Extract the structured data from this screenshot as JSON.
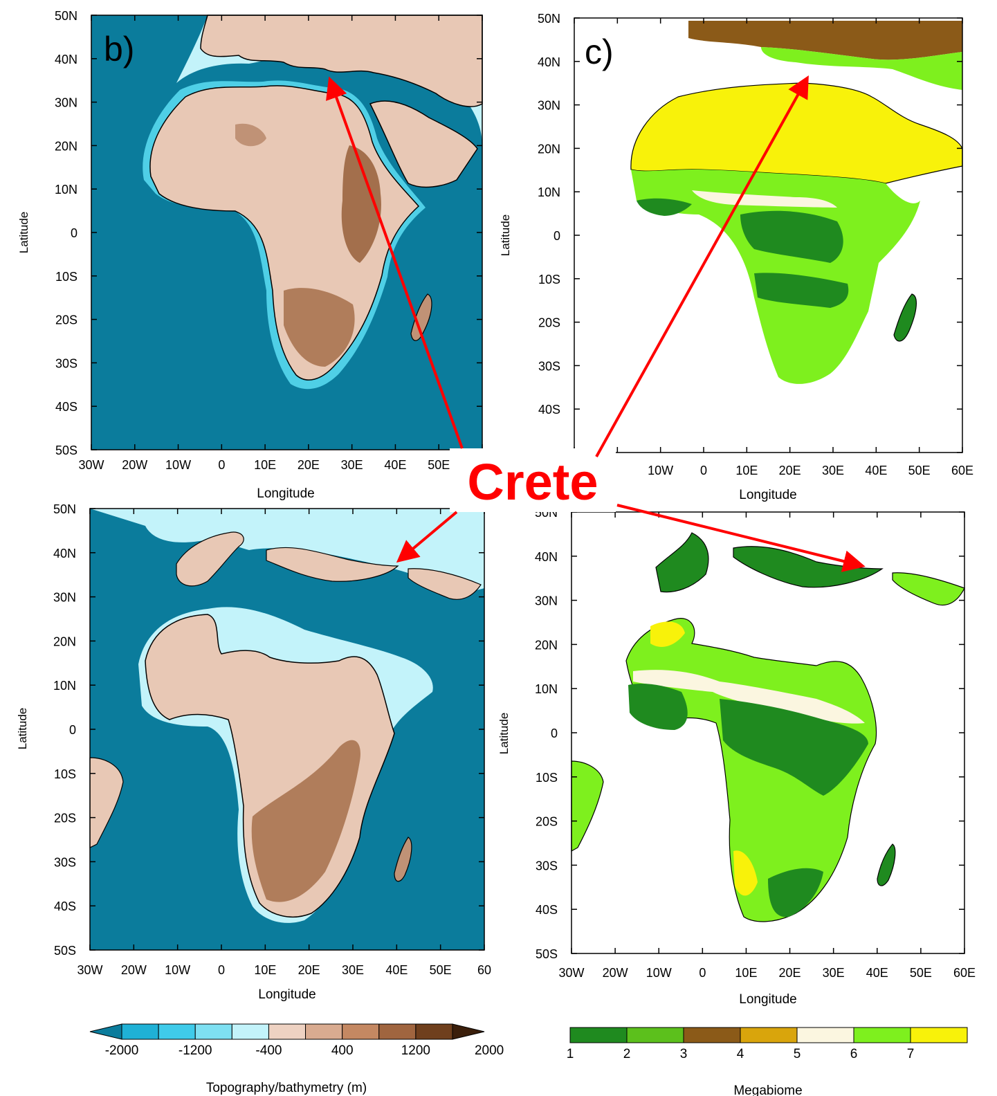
{
  "panels": {
    "b": {
      "label": "b)",
      "ylabel": "Latitude",
      "xlabel": "Longitude"
    },
    "c": {
      "label": "c)",
      "ylabel": "Latitude",
      "xlabel": "Longitude"
    },
    "d": {
      "ylabel": "Latitude",
      "xlabel": "Longitude"
    },
    "e": {
      "ylabel": "Latitude",
      "xlabel": "Longitude"
    }
  },
  "lat_ticks": [
    "50N",
    "40N",
    "30N",
    "20N",
    "10N",
    "0",
    "10S",
    "20S",
    "30S",
    "40S",
    "50S"
  ],
  "lon_ticks_b": [
    "30W",
    "20W",
    "10W",
    "0",
    "10E",
    "20E",
    "30E",
    "40E",
    "50E"
  ],
  "lon_ticks_c": [
    "10W",
    "0",
    "10E",
    "20E",
    "30E",
    "40E",
    "50E",
    "60E"
  ],
  "lon_ticks_d": [
    "30W",
    "20W",
    "10W",
    "0",
    "10E",
    "20E",
    "30E",
    "40E",
    "50E",
    "60"
  ],
  "lon_ticks_e": [
    "30W",
    "20W",
    "10W",
    "0",
    "10E",
    "20E",
    "30E",
    "40E",
    "50E",
    "60E"
  ],
  "annotation": {
    "text": "Crete"
  },
  "colorbar_topo": {
    "title": "Topography/bathymetry (m)",
    "labels": [
      "-2000",
      "-1200",
      "-400",
      "400",
      "1200",
      "2000"
    ],
    "colors": [
      "#0b7c9c",
      "#1fb1d6",
      "#3fcbea",
      "#7ee0f2",
      "#c3f3fa",
      "#eed2c2",
      "#d9ab90",
      "#c48862",
      "#a0653f",
      "#6f3f1d",
      "#3b1f0b"
    ]
  },
  "colorbar_biome": {
    "title": "Megabiome",
    "labels": [
      "1",
      "2",
      "3",
      "4",
      "5",
      "6",
      "7"
    ],
    "colors": [
      "#1f8a1f",
      "#5cc01c",
      "#8b5a18",
      "#d9a50c",
      "#fbf6e0",
      "#7ef01e",
      "#f8f20a"
    ]
  },
  "colors": {
    "ocean_deep": "#0b7c9c",
    "shelf": "#c3f3fa",
    "land_low": "#eed2c2",
    "land_mid": "#c9987a",
    "land_high": "#8b5a3a",
    "annotation_red": "#ff0000"
  }
}
